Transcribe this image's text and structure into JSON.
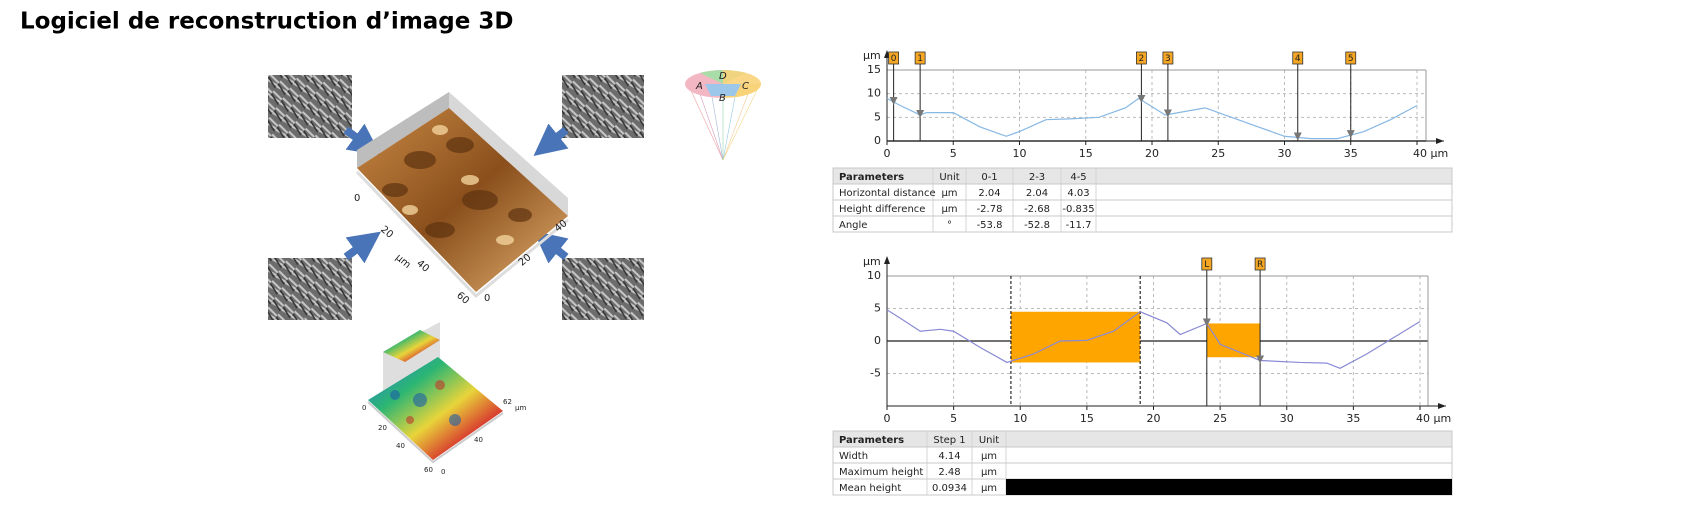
{
  "title": "Logiciel de reconstruction d’image 3D",
  "illustration": {
    "cone_labels": [
      "A",
      "D",
      "C",
      "B"
    ],
    "large_axis_labels": [
      "0",
      "20",
      "µm",
      "40",
      "60",
      "0",
      "20",
      "40"
    ],
    "small_axis_labels": [
      "0",
      "20",
      "40",
      "60",
      "0",
      "40",
      "62",
      "µm"
    ]
  },
  "chart_data": [
    {
      "type": "line",
      "y_unit": "µm",
      "xlim": [
        0,
        40
      ],
      "ylim": [
        0,
        15
      ],
      "xticks": [
        0,
        5,
        10,
        15,
        20,
        25,
        30,
        35,
        {
          "value": 40,
          "label": "40 µm"
        }
      ],
      "yticks": [
        0,
        5,
        10,
        15
      ],
      "grid": true,
      "x": [
        0,
        1,
        2.5,
        3,
        5,
        7,
        9,
        10,
        12,
        14,
        16,
        18,
        19,
        21,
        22,
        24,
        26,
        28,
        30,
        32,
        34,
        36,
        38,
        40
      ],
      "series": [
        {
          "color": "#86b8e4",
          "values": [
            9,
            7.5,
            5.5,
            6,
            6,
            3,
            1,
            2,
            4.5,
            4.7,
            5,
            7,
            9,
            5.5,
            6,
            7,
            5,
            3,
            1,
            0.5,
            0.5,
            2,
            4.5,
            7.5
          ]
        }
      ],
      "cursors": [
        {
          "label": "0",
          "x": 0.5
        },
        {
          "label": "1",
          "x": 2.5
        },
        {
          "label": "2",
          "x": 19.2
        },
        {
          "label": "3",
          "x": 21.2
        },
        {
          "label": "4",
          "x": 31
        },
        {
          "label": "5",
          "x": 35
        }
      ]
    },
    {
      "type": "line",
      "y_unit": "µm",
      "xlim": [
        0,
        40
      ],
      "ylim": [
        -10,
        10
      ],
      "xticks": [
        0,
        5,
        10,
        15,
        20,
        25,
        30,
        35,
        {
          "value": 40,
          "label": "40 µm"
        }
      ],
      "yticks": [
        -5,
        0,
        5,
        10
      ],
      "grid": true,
      "x": [
        0,
        1,
        2.5,
        4,
        5,
        7,
        9,
        11,
        13,
        15,
        17,
        19,
        21,
        22,
        24,
        25,
        28,
        31,
        33,
        34,
        36,
        38,
        40
      ],
      "series": [
        {
          "color": "#8a8ad6",
          "values": [
            4.8,
            3.5,
            1.5,
            1.8,
            1.5,
            -1,
            -3.3,
            -2,
            0,
            0.1,
            1.5,
            4.5,
            2.8,
            1,
            2.7,
            -0.5,
            -3,
            -3.3,
            -3.4,
            -4.2,
            -2,
            0.5,
            3
          ]
        }
      ],
      "steps": [
        {
          "color": "#ffa500",
          "x0": 9.3,
          "x1": 19,
          "y0": -3.3,
          "y1": 4.5
        },
        {
          "color": "#ffa500",
          "x0": 24,
          "x1": 28,
          "y0": -2.5,
          "y1": 2.7
        }
      ],
      "cursors": [
        {
          "label": "L",
          "x": 24
        },
        {
          "label": "R",
          "x": 28
        }
      ]
    }
  ],
  "tables": [
    {
      "header": [
        "Parameters",
        "Unit",
        "0-1",
        "2-3",
        "4-5"
      ],
      "rows": [
        [
          "Horizontal distance",
          "µm",
          "2.04",
          "2.04",
          "4.03"
        ],
        [
          "Height difference",
          "µm",
          "-2.78",
          "-2.68",
          "-0.835"
        ],
        [
          "Angle",
          "°",
          "-53.8",
          "-52.8",
          "-11.7"
        ]
      ]
    },
    {
      "header": [
        "Parameters",
        "Step 1",
        "Unit"
      ],
      "rows": [
        [
          "Width",
          "4.14",
          "µm"
        ],
        [
          "Maximum height",
          "2.48",
          "µm"
        ],
        [
          "Mean height",
          "0.0934",
          "µm"
        ]
      ]
    }
  ]
}
